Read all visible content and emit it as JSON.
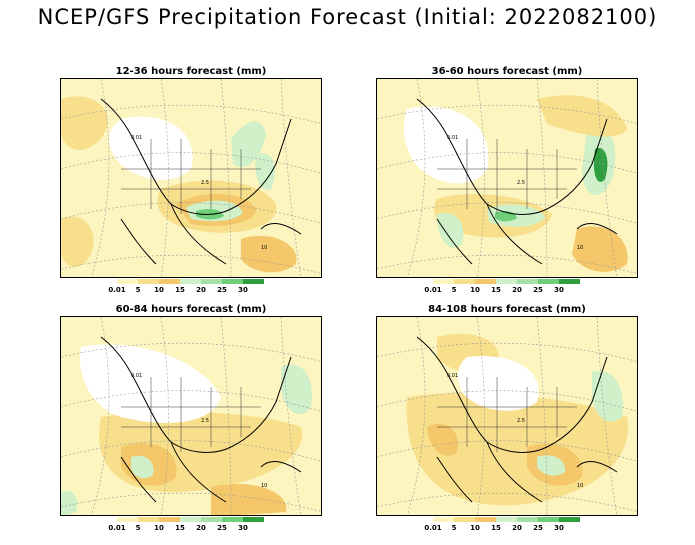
{
  "title": "NCEP/GFS Precipitation Forecast (Initial: 2022082100)",
  "colors": {
    "c_0_01": "#fdf5c0",
    "c_5": "#f7df8b",
    "c_10": "#f4c86a",
    "c_15": "#cff0c8",
    "c_20": "#a5e0a5",
    "c_25": "#6fcf78",
    "c_30": "#2e9e3f",
    "grid": "#999999",
    "coast": "#000000"
  },
  "legend": {
    "labels": [
      "0.01",
      "5",
      "10",
      "15",
      "20",
      "25",
      "30"
    ]
  },
  "panels": [
    {
      "title": "12-36 hours forecast (mm)"
    },
    {
      "title": "36-60 hours forecast (mm)"
    },
    {
      "title": "60-84 hours forecast (mm)"
    },
    {
      "title": "84-108 hours forecast (mm)"
    }
  ],
  "contour_labels": [
    "0.01",
    "2.5",
    "10"
  ]
}
